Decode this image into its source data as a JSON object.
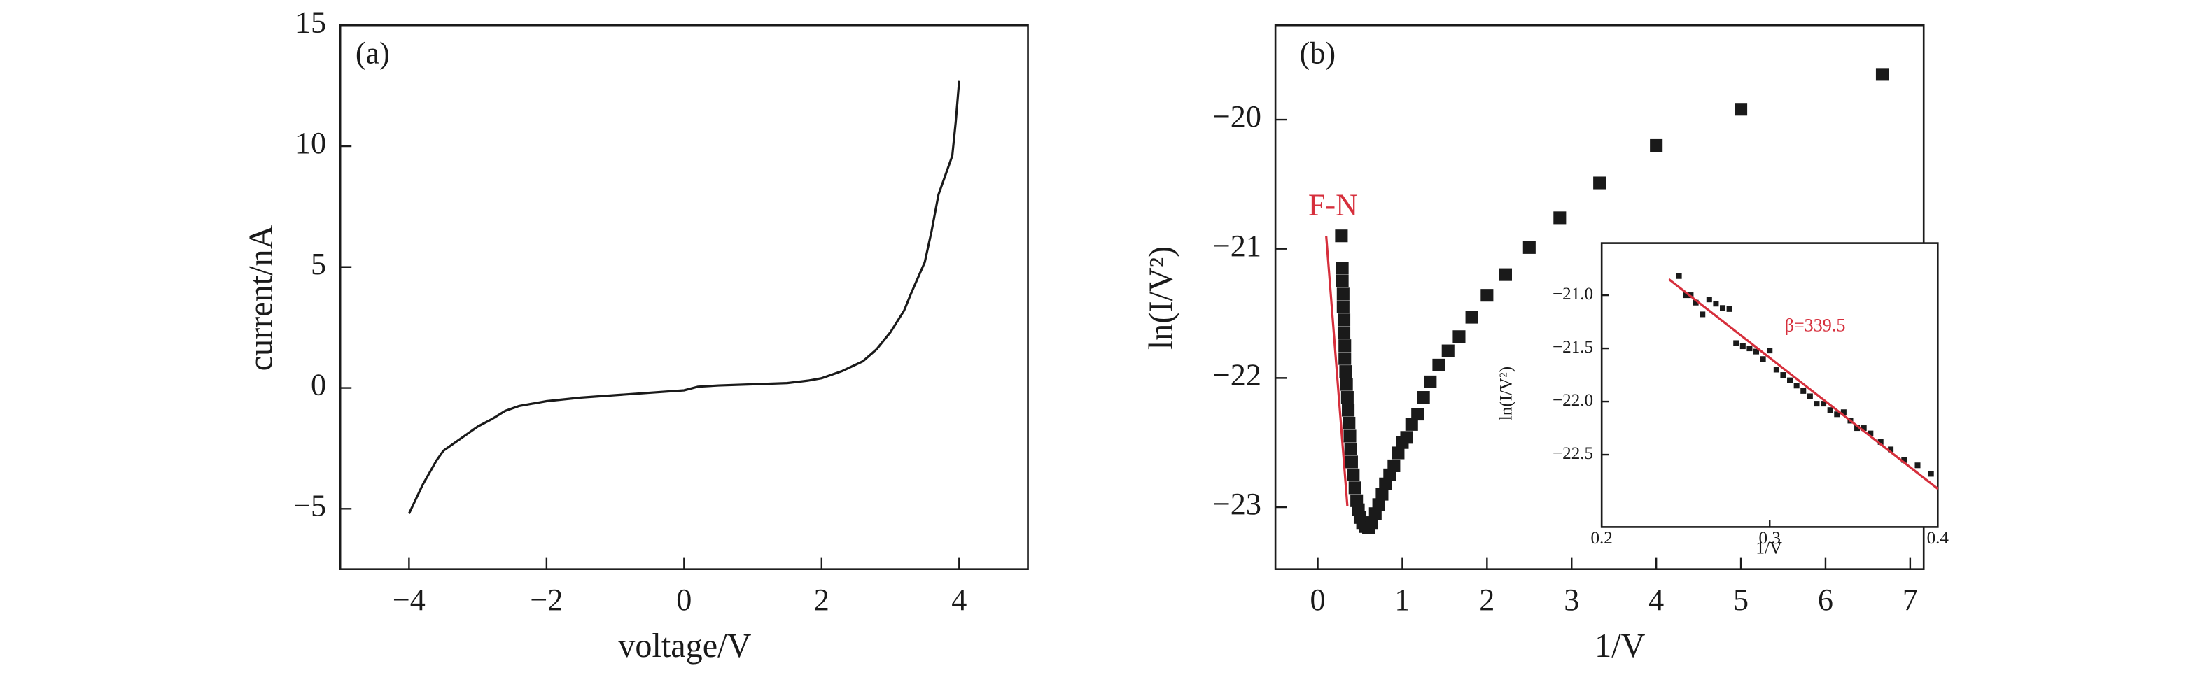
{
  "chart_data": [
    {
      "type": "line",
      "panel_label": "(a)",
      "xlabel": "voltage/V",
      "ylabel": "current/nA",
      "xlim": [
        -5,
        5
      ],
      "ylim": [
        -7.5,
        15
      ],
      "xticks": [
        {
          "value": -4,
          "label": "−4"
        },
        {
          "value": -2,
          "label": "−2"
        },
        0,
        2,
        4
      ],
      "yticks": [
        {
          "value": -5,
          "label": "−5"
        },
        0,
        5,
        10,
        15
      ],
      "color": "#1a1a1a",
      "x": [
        -4,
        -3.8,
        -3.6,
        -3.5,
        -3.2,
        -3.0,
        -2.8,
        -2.6,
        -2.4,
        -2,
        -1.5,
        -1,
        -0.5,
        0,
        0.2,
        0.5,
        1,
        1.5,
        1.8,
        2,
        2.3,
        2.6,
        2.8,
        3.0,
        3.2,
        3.3,
        3.5,
        3.6,
        3.7,
        3.8,
        3.9,
        3.95,
        4.0
      ],
      "values": [
        -5.2,
        -4.0,
        -3.0,
        -2.6,
        -2.0,
        -1.6,
        -1.3,
        -0.95,
        -0.75,
        -0.55,
        -0.4,
        -0.3,
        -0.2,
        -0.1,
        0.05,
        0.1,
        0.15,
        0.2,
        0.3,
        0.4,
        0.7,
        1.1,
        1.6,
        2.3,
        3.2,
        3.9,
        5.2,
        6.5,
        8.0,
        8.8,
        9.6,
        11,
        12.7
      ]
    },
    {
      "type": "scatter",
      "panel_label": "(b)",
      "xlabel": "1/V",
      "ylabel": "ln(I/V²)",
      "xlim": [
        -0.5,
        7.16
      ],
      "ylim": [
        -23.48,
        -19.27
      ],
      "xticks": [
        0,
        1,
        2,
        3,
        4,
        5,
        6,
        7
      ],
      "yticks": [
        {
          "value": -23,
          "label": "−23"
        },
        {
          "value": -22,
          "label": "−22"
        },
        {
          "value": -21,
          "label": "−21"
        },
        {
          "value": -20,
          "label": "−20"
        }
      ],
      "color": "#1a1a1a",
      "annotation": "F-N",
      "fit_color": "#d62f3c",
      "fit_x": [
        0.1,
        0.35
      ],
      "fit_values": [
        -20.9,
        -22.99
      ],
      "x": [
        0.28,
        0.29,
        0.29,
        0.3,
        0.3,
        0.31,
        0.31,
        0.32,
        0.32,
        0.33,
        0.34,
        0.35,
        0.36,
        0.37,
        0.38,
        0.39,
        0.4,
        0.42,
        0.44,
        0.46,
        0.48,
        0.5,
        0.53,
        0.56,
        0.6,
        0.64,
        0.68,
        0.72,
        0.76,
        0.8,
        0.85,
        0.9,
        0.95,
        1.0,
        1.05,
        1.11,
        1.18,
        1.25,
        1.33,
        1.43,
        1.54,
        1.67,
        1.82,
        2.0,
        2.22,
        2.5,
        2.86,
        3.33,
        4.0,
        5.0,
        6.67
      ],
      "values": [
        -20.9,
        -21.15,
        -21.25,
        -21.35,
        -21.45,
        -21.55,
        -21.65,
        -21.75,
        -21.85,
        -21.95,
        -22.05,
        -22.15,
        -22.25,
        -22.35,
        -22.45,
        -22.55,
        -22.65,
        -22.75,
        -22.85,
        -22.95,
        -23.02,
        -23.08,
        -23.12,
        -23.15,
        -23.16,
        -23.12,
        -23.05,
        -22.98,
        -22.9,
        -22.82,
        -22.75,
        -22.68,
        -22.58,
        -22.5,
        -22.46,
        -22.36,
        -22.28,
        -22.15,
        -22.03,
        -21.9,
        -21.79,
        -21.68,
        -21.53,
        -21.36,
        -21.2,
        -20.99,
        -20.76,
        -20.49,
        -20.2,
        -19.92,
        -19.65
      ]
    },
    {
      "type": "scatter",
      "xlabel": "1/V",
      "ylabel": "ln(I/V²)",
      "xlim": [
        0.2,
        0.4
      ],
      "ylim": [
        -23.18,
        -20.51
      ],
      "xticks": [
        0.2,
        0.3,
        0.4
      ],
      "yticks": [
        {
          "value": -22.5,
          "label": "−22.5"
        },
        {
          "value": -22.0,
          "label": "−22.0"
        },
        {
          "value": -21.5,
          "label": "−21.5"
        },
        {
          "value": -21.0,
          "label": "−21.0"
        }
      ],
      "color": "#1a1a1a",
      "annotation": "β=339.5",
      "fit_color": "#d62f3c",
      "fit_x": [
        0.24,
        0.4
      ],
      "fit_values": [
        -20.85,
        -22.82
      ],
      "x": [
        0.246,
        0.25,
        0.253,
        0.256,
        0.26,
        0.264,
        0.268,
        0.272,
        0.276,
        0.28,
        0.284,
        0.288,
        0.292,
        0.296,
        0.3,
        0.304,
        0.308,
        0.312,
        0.316,
        0.32,
        0.324,
        0.328,
        0.332,
        0.336,
        0.34,
        0.344,
        0.348,
        0.352,
        0.356,
        0.36,
        0.366,
        0.372,
        0.38,
        0.388,
        0.396
      ],
      "values": [
        -20.82,
        -21.0,
        -21.0,
        -21.07,
        -21.18,
        -21.04,
        -21.08,
        -21.12,
        -21.13,
        -21.45,
        -21.48,
        -21.5,
        -21.53,
        -21.6,
        -21.52,
        -21.7,
        -21.75,
        -21.8,
        -21.85,
        -21.9,
        -21.95,
        -22.02,
        -22.02,
        -22.08,
        -22.12,
        -22.1,
        -22.18,
        -22.25,
        -22.25,
        -22.3,
        -22.38,
        -22.45,
        -22.55,
        -22.6,
        -22.68
      ]
    }
  ]
}
